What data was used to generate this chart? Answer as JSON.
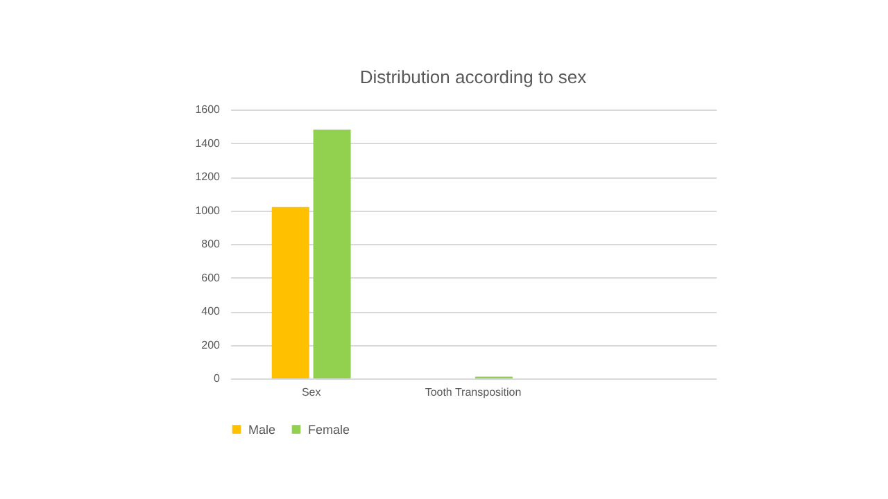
{
  "chart_data": {
    "type": "bar",
    "title": "Distribution according to sex",
    "categories": [
      "Sex",
      "Tooth Transposition",
      null
    ],
    "series": [
      {
        "name": "Male",
        "color": "#ffc000",
        "values": [
          1020,
          0,
          null
        ]
      },
      {
        "name": "Female",
        "color": "#92d050",
        "values": [
          1480,
          10,
          null
        ]
      }
    ],
    "ylim": [
      0,
      1600
    ],
    "yticks": [
      0,
      200,
      400,
      600,
      800,
      1000,
      1200,
      1400,
      1600
    ],
    "grid": "y",
    "legend": "bottom"
  }
}
